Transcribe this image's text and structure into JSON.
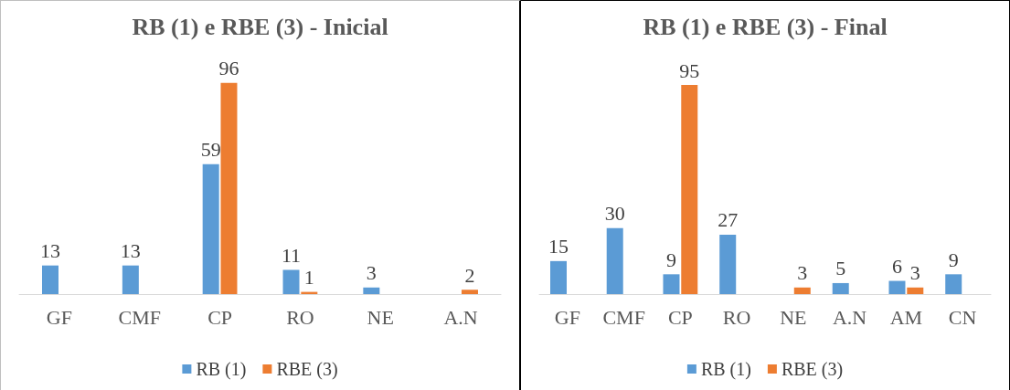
{
  "chart_data": [
    {
      "type": "bar",
      "title": "RB (1) e RBE (3) - Inicial",
      "categories": [
        "GF",
        "CMF",
        "CP",
        "RO",
        "NE",
        "A.N"
      ],
      "series": [
        {
          "name": "RB (1)",
          "color": "#5b9bd5",
          "values": [
            13,
            13,
            59,
            11,
            3,
            null
          ]
        },
        {
          "name": "RBE (3)",
          "color": "#ed7d31",
          "values": [
            null,
            null,
            96,
            1,
            null,
            2
          ]
        }
      ],
      "data_labels": true,
      "legend": "bottom"
    },
    {
      "type": "bar",
      "title": "RB (1) e RBE (3) - Final",
      "categories": [
        "GF",
        "CMF",
        "CP",
        "RO",
        "NE",
        "A.N",
        "AM",
        "CN"
      ],
      "series": [
        {
          "name": "RB (1)",
          "color": "#5b9bd5",
          "values": [
            15,
            30,
            9,
            27,
            null,
            5,
            6,
            9
          ]
        },
        {
          "name": "RBE (3)",
          "color": "#ed7d31",
          "values": [
            null,
            null,
            95,
            null,
            3,
            null,
            3,
            null
          ]
        }
      ],
      "data_labels": true,
      "legend": "bottom"
    }
  ]
}
